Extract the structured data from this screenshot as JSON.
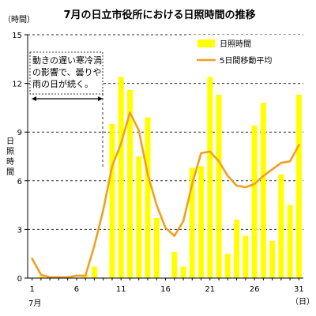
{
  "chart_data": {
    "type": "bar",
    "title": "7月の日立市役所における日照時間の推移",
    "yunit": "（時間）",
    "ylabel": "日照時間",
    "xlabel_month": "7月",
    "xunit": "（日）",
    "ylim": [
      0,
      15
    ],
    "yticks": [
      "0",
      "3",
      "6",
      "9",
      "12",
      "15"
    ],
    "xticks": [
      "1",
      "6",
      "11",
      "16",
      "21",
      "26",
      "31"
    ],
    "x": [
      1,
      2,
      3,
      4,
      5,
      6,
      7,
      8,
      9,
      10,
      11,
      12,
      13,
      14,
      15,
      16,
      17,
      18,
      19,
      20,
      21,
      22,
      23,
      24,
      25,
      26,
      27,
      28,
      29,
      30,
      31
    ],
    "legend": [
      {
        "name": "日照時間",
        "color": "#ffff00"
      },
      {
        "name": "5日間移動平均",
        "color": "#f0a020"
      }
    ],
    "series": [
      {
        "name": "日照時間",
        "kind": "bar",
        "color": "#ffff00",
        "values": [
          0,
          0.1,
          0,
          0,
          0,
          0,
          0.2,
          0.7,
          0,
          9.5,
          12.4,
          11.6,
          7.5,
          9.9,
          3.7,
          0,
          1.6,
          0.7,
          6.8,
          6.9,
          12.4,
          11.3,
          1.5,
          3.6,
          2.6,
          9.4,
          10.8,
          2.3,
          6.4,
          4.5,
          11.3
        ]
      },
      {
        "name": "5日間移動平均",
        "kind": "line",
        "color": "#f0a020",
        "values": [
          1.2,
          0.2,
          0.05,
          0.05,
          0.05,
          0.15,
          0.15,
          2.0,
          4.2,
          6.9,
          8.3,
          10.2,
          9.1,
          6.4,
          4.5,
          3.1,
          2.6,
          3.5,
          5.8,
          7.7,
          7.8,
          7.2,
          6.3,
          5.7,
          5.6,
          5.8,
          6.3,
          6.7,
          7.1,
          7.2,
          8.2
        ]
      }
    ],
    "annotation": {
      "lines": [
        "動きの遅い寒冷渦",
        "の影響で、曇りや",
        "雨の日が続く。"
      ]
    },
    "grid": "horizontal-dashed"
  }
}
